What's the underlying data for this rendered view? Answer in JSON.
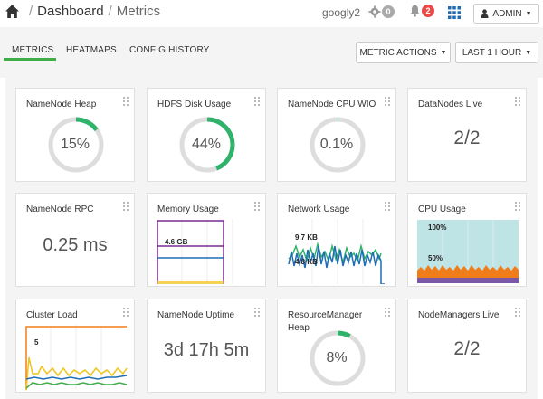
{
  "header": {
    "breadcrumbs": [
      "Dashboard",
      "Metrics"
    ],
    "user_name": "googly2",
    "ops_count": "0",
    "alerts_count": "2",
    "admin_label": "ADMIN"
  },
  "tabs": [
    {
      "label": "METRICS",
      "active": true
    },
    {
      "label": "HEATMAPS",
      "active": false
    },
    {
      "label": "CONFIG HISTORY",
      "active": false
    }
  ],
  "toolbar": {
    "metric_actions_label": "METRIC ACTIONS",
    "time_range_label": "LAST 1 HOUR"
  },
  "colors": {
    "accent_green": "#3fae49",
    "gauge_green": "#2fb36a",
    "gauge_track": "#dddddd",
    "alert_red": "#e94b4b",
    "link_blue": "#1e6db6"
  },
  "widgets": [
    {
      "title": "NameNode Heap",
      "type": "gauge",
      "value": "15%",
      "fraction": 0.15
    },
    {
      "title": "HDFS Disk Usage",
      "type": "gauge",
      "value": "44%",
      "fraction": 0.44
    },
    {
      "title": "NameNode CPU WIO",
      "type": "gauge",
      "value": "0.1%",
      "fraction": 0.001
    },
    {
      "title": "DataNodes Live",
      "type": "number",
      "value": "2/2"
    },
    {
      "title": "NameNode RPC",
      "type": "number",
      "value": "0.25 ms"
    },
    {
      "title": "Memory Usage",
      "type": "chart",
      "labels": [
        "4.6 GB"
      ]
    },
    {
      "title": "Network Usage",
      "type": "chart",
      "labels": [
        "9.7 KB",
        "4.8 KB"
      ]
    },
    {
      "title": "CPU Usage",
      "type": "chart",
      "labels": [
        "100%",
        "50%"
      ]
    },
    {
      "title": "Cluster Load",
      "type": "chart",
      "labels": [
        "5"
      ]
    },
    {
      "title": "NameNode Uptime",
      "type": "number",
      "value": "3d 17h 5m"
    },
    {
      "title": "ResourceManager Heap",
      "type": "gauge",
      "value": "8%",
      "fraction": 0.08
    },
    {
      "title": "NodeManagers Live",
      "type": "number",
      "value": "2/2"
    }
  ]
}
